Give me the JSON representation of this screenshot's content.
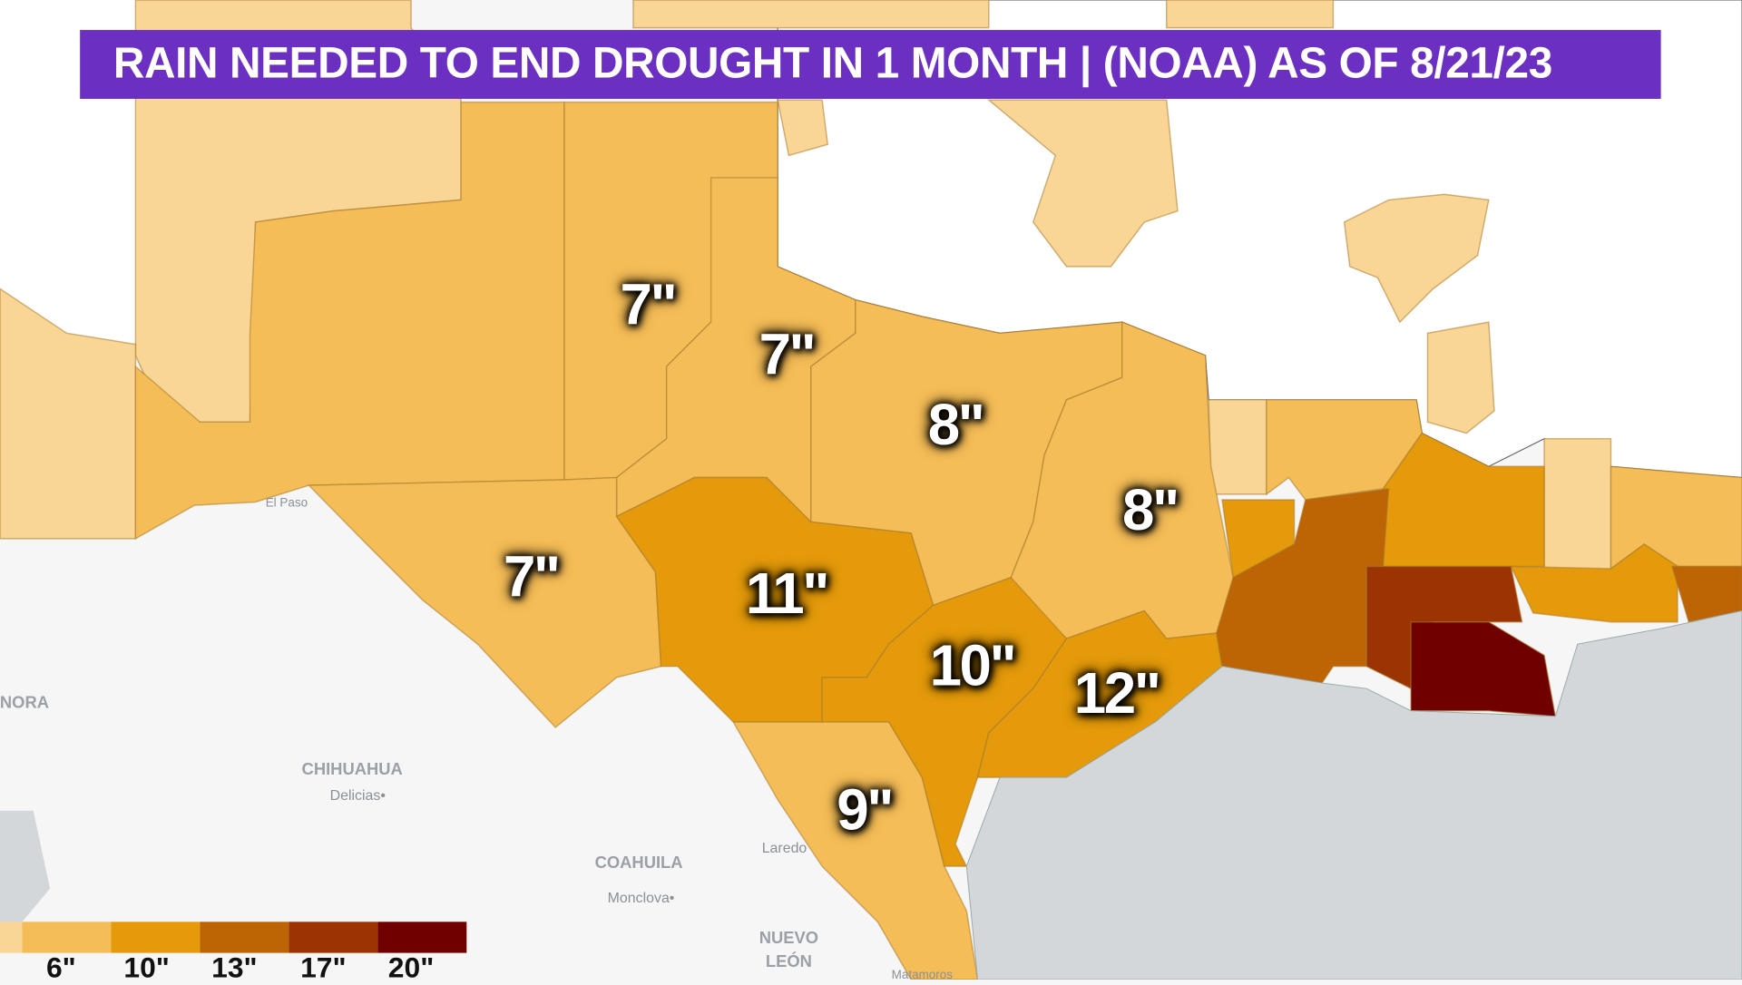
{
  "title": "RAIN NEEDED TO END DROUGHT IN 1 MONTH | (NOAA) AS OF 8/21/23",
  "colors": {
    "title_bar": "#6b2fc2",
    "pale": "#f9d596",
    "c6": "#f5bd57",
    "c10": "#e49a0a",
    "c13": "#bd6404",
    "c17": "#9b3302",
    "c20": "#700000",
    "water": "#d3d7da",
    "land": "#ffffff"
  },
  "divisions": [
    {
      "name": "panhandle",
      "value": "7\""
    },
    {
      "name": "low-rolling-plains",
      "value": "7\""
    },
    {
      "name": "north-central",
      "value": "8\""
    },
    {
      "name": "east-texas",
      "value": "8\""
    },
    {
      "name": "trans-pecos",
      "value": "7\""
    },
    {
      "name": "edwards-plateau",
      "value": "11\""
    },
    {
      "name": "south-central",
      "value": "10\""
    },
    {
      "name": "upper-coast",
      "value": "12\""
    },
    {
      "name": "south-texas",
      "value": "9\""
    }
  ],
  "places": {
    "sonora": "NORA",
    "chihuahua": "CHIHUAHUA",
    "delicias": "Delicias•",
    "coahuila": "COAHUILA",
    "monclova": "Monclova•",
    "laredo": "Laredo",
    "nuevo": "NUEVO",
    "leon": "LEÓN",
    "el_paso": "El Paso",
    "matamoros": "Matamoros"
  },
  "legend": {
    "labels": [
      "6\"",
      "10\"",
      "13\"",
      "17\"",
      "20\""
    ]
  }
}
